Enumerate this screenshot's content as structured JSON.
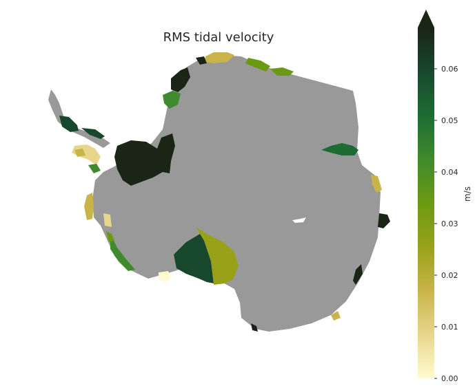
{
  "title": "RMS tidal velocity",
  "colorbar": {
    "label": "m/s",
    "min": 0.0,
    "max": 0.068,
    "extend": "max",
    "ticks": [
      "0.00",
      "0.01",
      "0.02",
      "0.03",
      "0.04",
      "0.05",
      "0.06"
    ],
    "tick_values": [
      0.0,
      0.01,
      0.02,
      0.03,
      0.04,
      0.05,
      0.06
    ],
    "colors": [
      "#fffbd0",
      "#e8d68c",
      "#c9b44a",
      "#98a219",
      "#6b9a12",
      "#3f8a2c",
      "#1c6b32",
      "#17482e",
      "#1a2417"
    ]
  },
  "colors": {
    "land": "#999999",
    "background": "#ffffff"
  }
}
